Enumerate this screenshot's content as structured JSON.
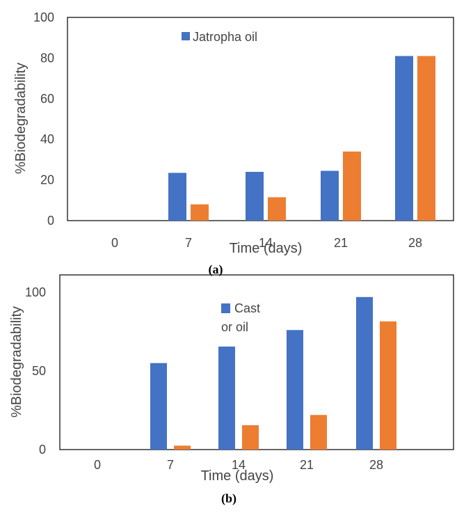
{
  "colors": {
    "blue": "#4472c4",
    "orange": "#ed7d31",
    "frame": "#000000"
  },
  "chart_data": [
    {
      "type": "bar",
      "caption": "(a)",
      "categories": [
        "0",
        "7",
        "14",
        "21",
        "28"
      ],
      "series": [
        {
          "name": "Jatropha oil",
          "values": [
            0,
            23.5,
            24,
            24.5,
            81
          ]
        },
        {
          "values": [
            0,
            8,
            11.5,
            34,
            81
          ]
        }
      ],
      "xlabel": "Time (days)",
      "ylabel": "%Biodegradability",
      "ylim": [
        0,
        100
      ],
      "yticks": [
        "0",
        "20",
        "40",
        "60",
        "80",
        "100"
      ],
      "legend": {
        "entries": [
          "Jatropha oil"
        ],
        "placement": "top-center"
      },
      "grid": false
    },
    {
      "type": "bar",
      "caption": "(b)",
      "categories": [
        "0",
        "7",
        "14",
        "21",
        "28"
      ],
      "series": [
        {
          "name": "Cast or oil",
          "values": [
            0,
            55,
            65.5,
            76,
            97
          ]
        },
        {
          "values": [
            0,
            2.5,
            15.5,
            22,
            81.5
          ]
        }
      ],
      "xlabel": "Time (days)",
      "ylabel": "%Biodegradability",
      "ylim": [
        0,
        100
      ],
      "yticks": [
        "0",
        "50",
        "100"
      ],
      "legend": {
        "entries": [
          "Cast",
          "or oil"
        ],
        "placement": "top-center"
      },
      "grid": false
    }
  ]
}
